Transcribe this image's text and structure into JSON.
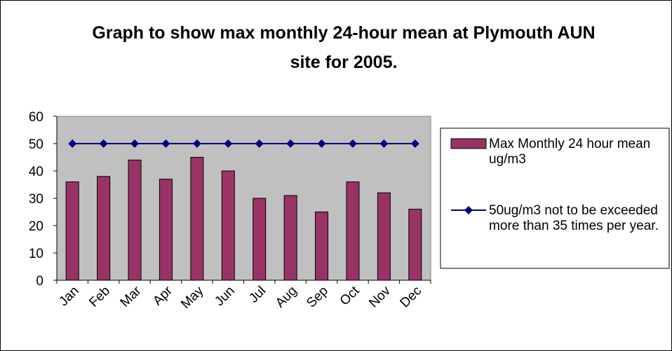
{
  "chart_data": {
    "type": "bar",
    "title": "Graph to show max monthly 24-hour mean at Plymouth AUN site for 2005.",
    "categories": [
      "Jan",
      "Feb",
      "Mar",
      "Apr",
      "May",
      "Jun",
      "Jul",
      "Aug",
      "Sep",
      "Oct",
      "Nov",
      "Dec"
    ],
    "series": [
      {
        "name": "Max Monthly 24 hour mean ug/m3",
        "type": "bar",
        "color": "#993366",
        "values": [
          36,
          38,
          44,
          37,
          45,
          40,
          30,
          31,
          25,
          36,
          32,
          26
        ]
      },
      {
        "name": "50ug/m3 not to be exceeded more than 35 times per year.",
        "type": "line",
        "color": "#000080",
        "values": [
          50,
          50,
          50,
          50,
          50,
          50,
          50,
          50,
          50,
          50,
          50,
          50
        ]
      }
    ],
    "ylim": [
      0,
      60
    ],
    "yticks": [
      0,
      10,
      20,
      30,
      40,
      50,
      60
    ],
    "plot_background": "#c0c0c0",
    "legend": "right"
  }
}
